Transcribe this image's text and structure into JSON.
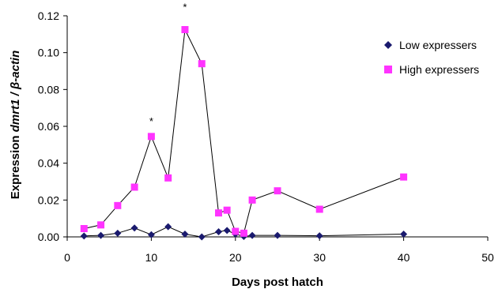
{
  "chart_data": {
    "type": "line",
    "xlabel": "Days post hatch",
    "ylabel_parts": [
      "Expression ",
      "dmrt1",
      " / ",
      "β-actin"
    ],
    "xlim": [
      0,
      50
    ],
    "ylim": [
      0,
      0.12
    ],
    "xticks": [
      "0",
      "10",
      "20",
      "30",
      "40",
      "50"
    ],
    "yticks": [
      "0.00",
      "0.02",
      "0.04",
      "0.06",
      "0.08",
      "0.10",
      "0.12"
    ],
    "grid": false,
    "legend_position": "top-right",
    "series": [
      {
        "name": "Low expressers",
        "marker": "diamond",
        "color": "#1a1a6e",
        "line_color": "#000000",
        "x": [
          2,
          4,
          6,
          8,
          10,
          12,
          14,
          16,
          18,
          19,
          20,
          21,
          22,
          25,
          30,
          40
        ],
        "y": [
          0.0005,
          0.0008,
          0.002,
          0.0048,
          0.0012,
          0.0055,
          0.0015,
          0.0,
          0.0028,
          0.0035,
          0.0015,
          0.0002,
          0.0008,
          0.0008,
          0.0006,
          0.0015
        ]
      },
      {
        "name": "High expressers",
        "marker": "square",
        "color": "#ff33ff",
        "line_color": "#000000",
        "x": [
          2,
          4,
          6,
          8,
          10,
          12,
          14,
          16,
          18,
          19,
          20,
          21,
          22,
          25,
          30,
          40
        ],
        "y": [
          0.0045,
          0.0065,
          0.017,
          0.027,
          0.0545,
          0.032,
          0.1125,
          0.094,
          0.013,
          0.0145,
          0.003,
          0.002,
          0.02,
          0.025,
          0.015,
          0.0325
        ]
      }
    ],
    "annotations": [
      {
        "text": "*",
        "x": 10,
        "y": 0.0625
      },
      {
        "text": "*",
        "x": 14,
        "y": 0.1245
      }
    ]
  }
}
